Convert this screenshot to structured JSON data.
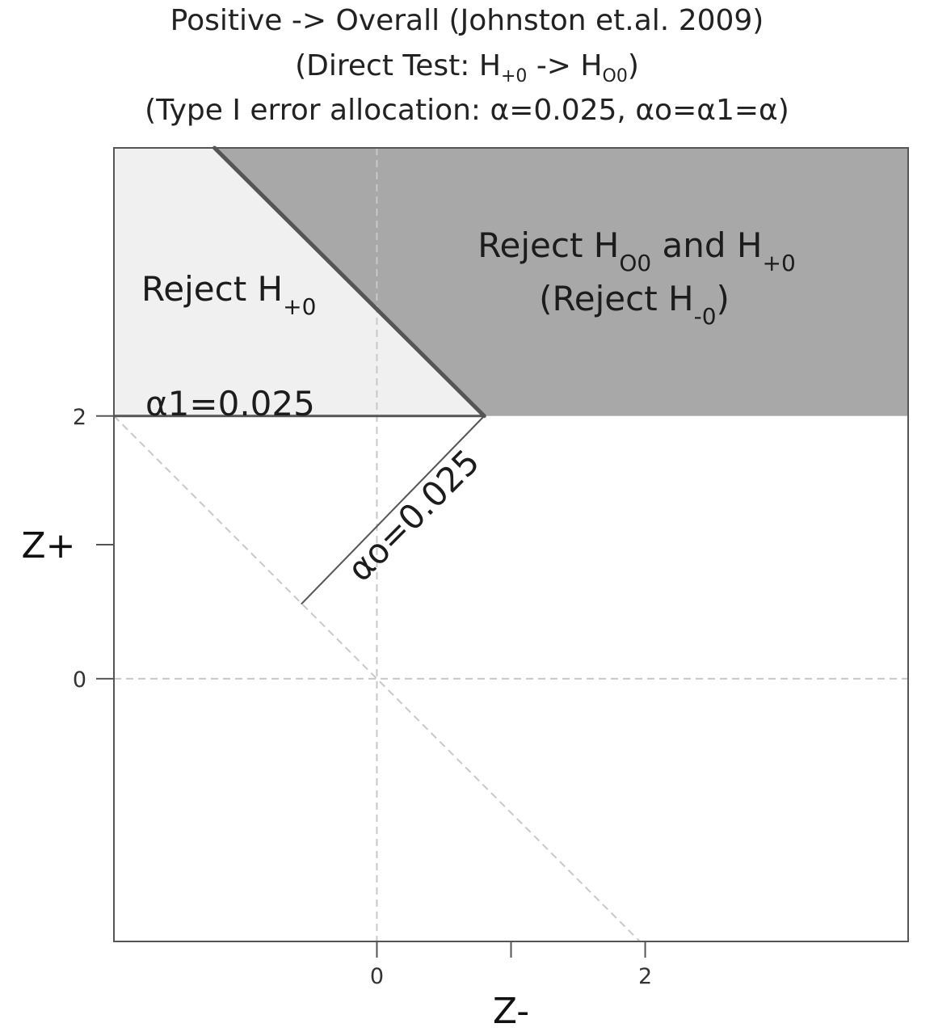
{
  "titles": {
    "line1": "Positive -> Overall (Johnston et.al. 2009)",
    "line2_prefix": "(Direct Test: H",
    "line2_sub1": "+0",
    "line2_mid": "  -> H",
    "line2_sub2": "O0",
    "line2_suffix": ")",
    "line3": "(Type I error allocation: α=0.025, αo=α1=α)"
  },
  "chart_data": {
    "type": "area",
    "xlabel": "Z-",
    "ylabel": "Z+",
    "xlim": [
      -1.96,
      3.96
    ],
    "ylim": [
      -1.96,
      3.96
    ],
    "x_ticks": [
      0,
      1,
      2
    ],
    "x_tick_labels": [
      "0",
      "",
      "2"
    ],
    "y_ticks": [
      0,
      1,
      1.96
    ],
    "y_tick_labels": [
      "0",
      "",
      "2"
    ],
    "thresholds": {
      "z_alpha": 1.96
    },
    "reference_lines": [
      {
        "kind": "vertical",
        "x": 0,
        "style": "dashed"
      },
      {
        "kind": "horizontal",
        "y": 0,
        "style": "dashed"
      },
      {
        "kind": "diagonal",
        "from": [
          -1.96,
          1.96
        ],
        "to": [
          1.96,
          -1.96
        ],
        "style": "dashed"
      }
    ],
    "boundaries": [
      {
        "name": "α1=0.025",
        "from": [
          -1.96,
          1.96
        ],
        "to": [
          0.8,
          1.96
        ]
      },
      {
        "name": "αo=0.025",
        "from": [
          -0.56,
          0.56
        ],
        "to": [
          0.8,
          1.96
        ]
      },
      {
        "name": "overall-boundary",
        "from": [
          0.8,
          1.96
        ],
        "to": [
          -1.21,
          3.96
        ]
      }
    ],
    "regions": [
      {
        "name": "Reject H+0",
        "color": "#f0f0f0",
        "polygon": [
          [
            -1.96,
            1.96
          ],
          [
            0.8,
            1.96
          ],
          [
            -1.21,
            3.96
          ],
          [
            -1.96,
            3.96
          ]
        ]
      },
      {
        "name": "Reject HO0 and H+0 (Reject H-0)",
        "color": "#a8a8a8",
        "polygon": [
          [
            0.8,
            1.96
          ],
          [
            3.96,
            1.96
          ],
          [
            3.96,
            3.96
          ],
          [
            -1.21,
            3.96
          ]
        ]
      }
    ],
    "region_labels": {
      "reject_plus": {
        "main": "Reject H",
        "sub": "+0"
      },
      "reject_both": {
        "main": "Reject H",
        "sub1": "O0",
        "mid": " and H",
        "sub2": "+0"
      },
      "reject_minus": {
        "open": "(Reject H",
        "sub": "-0",
        "close": ")"
      }
    },
    "annotations": {
      "alpha1": "α1=0.025",
      "alpha_o": "αo=0.025"
    },
    "colors": {
      "reject_plus_fill": "#f0f0f0",
      "reject_both_fill": "#a8a8a8",
      "boundary": "#555555",
      "dashed": "#c8c8c8"
    }
  }
}
